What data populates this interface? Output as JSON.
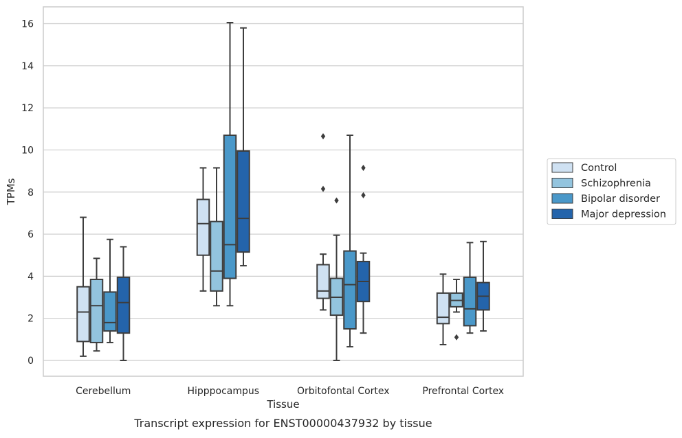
{
  "caption": "Transcript expression for ENST00000437932 by tissue",
  "chart_data": {
    "type": "box",
    "xlabel": "Tissue",
    "ylabel": "TPMs",
    "ylim": [
      -0.75,
      16.8
    ],
    "yticks": [
      0,
      2,
      4,
      6,
      8,
      10,
      12,
      14,
      16
    ],
    "grid": "horizontal",
    "legend_position": "right",
    "categories": [
      "Cerebellum",
      "Hipppocampus",
      "Orbitofontal Cortex",
      "Prefrontal Cortex"
    ],
    "series": [
      {
        "name": "Control",
        "color": "#cfe1f2",
        "boxes": [
          {
            "whislo": 0.2,
            "q1": 0.9,
            "med": 2.3,
            "q3": 3.5,
            "whishi": 6.8,
            "fliers": []
          },
          {
            "whislo": 3.3,
            "q1": 5.0,
            "med": 6.5,
            "q3": 7.65,
            "whishi": 9.15,
            "fliers": []
          },
          {
            "whislo": 2.4,
            "q1": 2.95,
            "med": 3.3,
            "q3": 4.55,
            "whishi": 5.05,
            "fliers": [
              8.15,
              10.65
            ]
          },
          {
            "whislo": 0.75,
            "q1": 1.75,
            "med": 2.05,
            "q3": 3.2,
            "whishi": 4.1,
            "fliers": []
          }
        ]
      },
      {
        "name": "Schizophrenia",
        "color": "#93c4de",
        "boxes": [
          {
            "whislo": 0.45,
            "q1": 0.85,
            "med": 2.6,
            "q3": 3.85,
            "whishi": 4.85,
            "fliers": []
          },
          {
            "whislo": 2.6,
            "q1": 3.3,
            "med": 4.25,
            "q3": 6.6,
            "whishi": 9.15,
            "fliers": []
          },
          {
            "whislo": 0.0,
            "q1": 2.15,
            "med": 3.0,
            "q3": 3.9,
            "whishi": 5.95,
            "fliers": [
              7.6
            ]
          },
          {
            "whislo": 2.3,
            "q1": 2.55,
            "med": 2.85,
            "q3": 3.2,
            "whishi": 3.85,
            "fliers": [
              1.1
            ]
          }
        ]
      },
      {
        "name": "Bipolar disorder",
        "color": "#4a98c9",
        "boxes": [
          {
            "whislo": 0.85,
            "q1": 1.4,
            "med": 1.8,
            "q3": 3.25,
            "whishi": 5.75,
            "fliers": []
          },
          {
            "whislo": 2.6,
            "q1": 3.9,
            "med": 5.5,
            "q3": 10.7,
            "whishi": 16.05,
            "fliers": []
          },
          {
            "whislo": 0.65,
            "q1": 1.5,
            "med": 3.6,
            "q3": 5.2,
            "whishi": 10.7,
            "fliers": []
          },
          {
            "whislo": 1.3,
            "q1": 1.65,
            "med": 2.45,
            "q3": 3.95,
            "whishi": 5.6,
            "fliers": []
          }
        ]
      },
      {
        "name": "Major depression",
        "color": "#2464ab",
        "boxes": [
          {
            "whislo": 0.0,
            "q1": 1.3,
            "med": 2.75,
            "q3": 3.95,
            "whishi": 5.4,
            "fliers": []
          },
          {
            "whislo": 4.5,
            "q1": 5.15,
            "med": 6.75,
            "q3": 9.95,
            "whishi": 15.8,
            "fliers": []
          },
          {
            "whislo": 1.3,
            "q1": 2.8,
            "med": 3.75,
            "q3": 4.7,
            "whishi": 5.1,
            "fliers": [
              7.85,
              9.15
            ]
          },
          {
            "whislo": 1.4,
            "q1": 2.4,
            "med": 3.05,
            "q3": 3.7,
            "whishi": 5.65,
            "fliers": []
          }
        ]
      }
    ]
  }
}
